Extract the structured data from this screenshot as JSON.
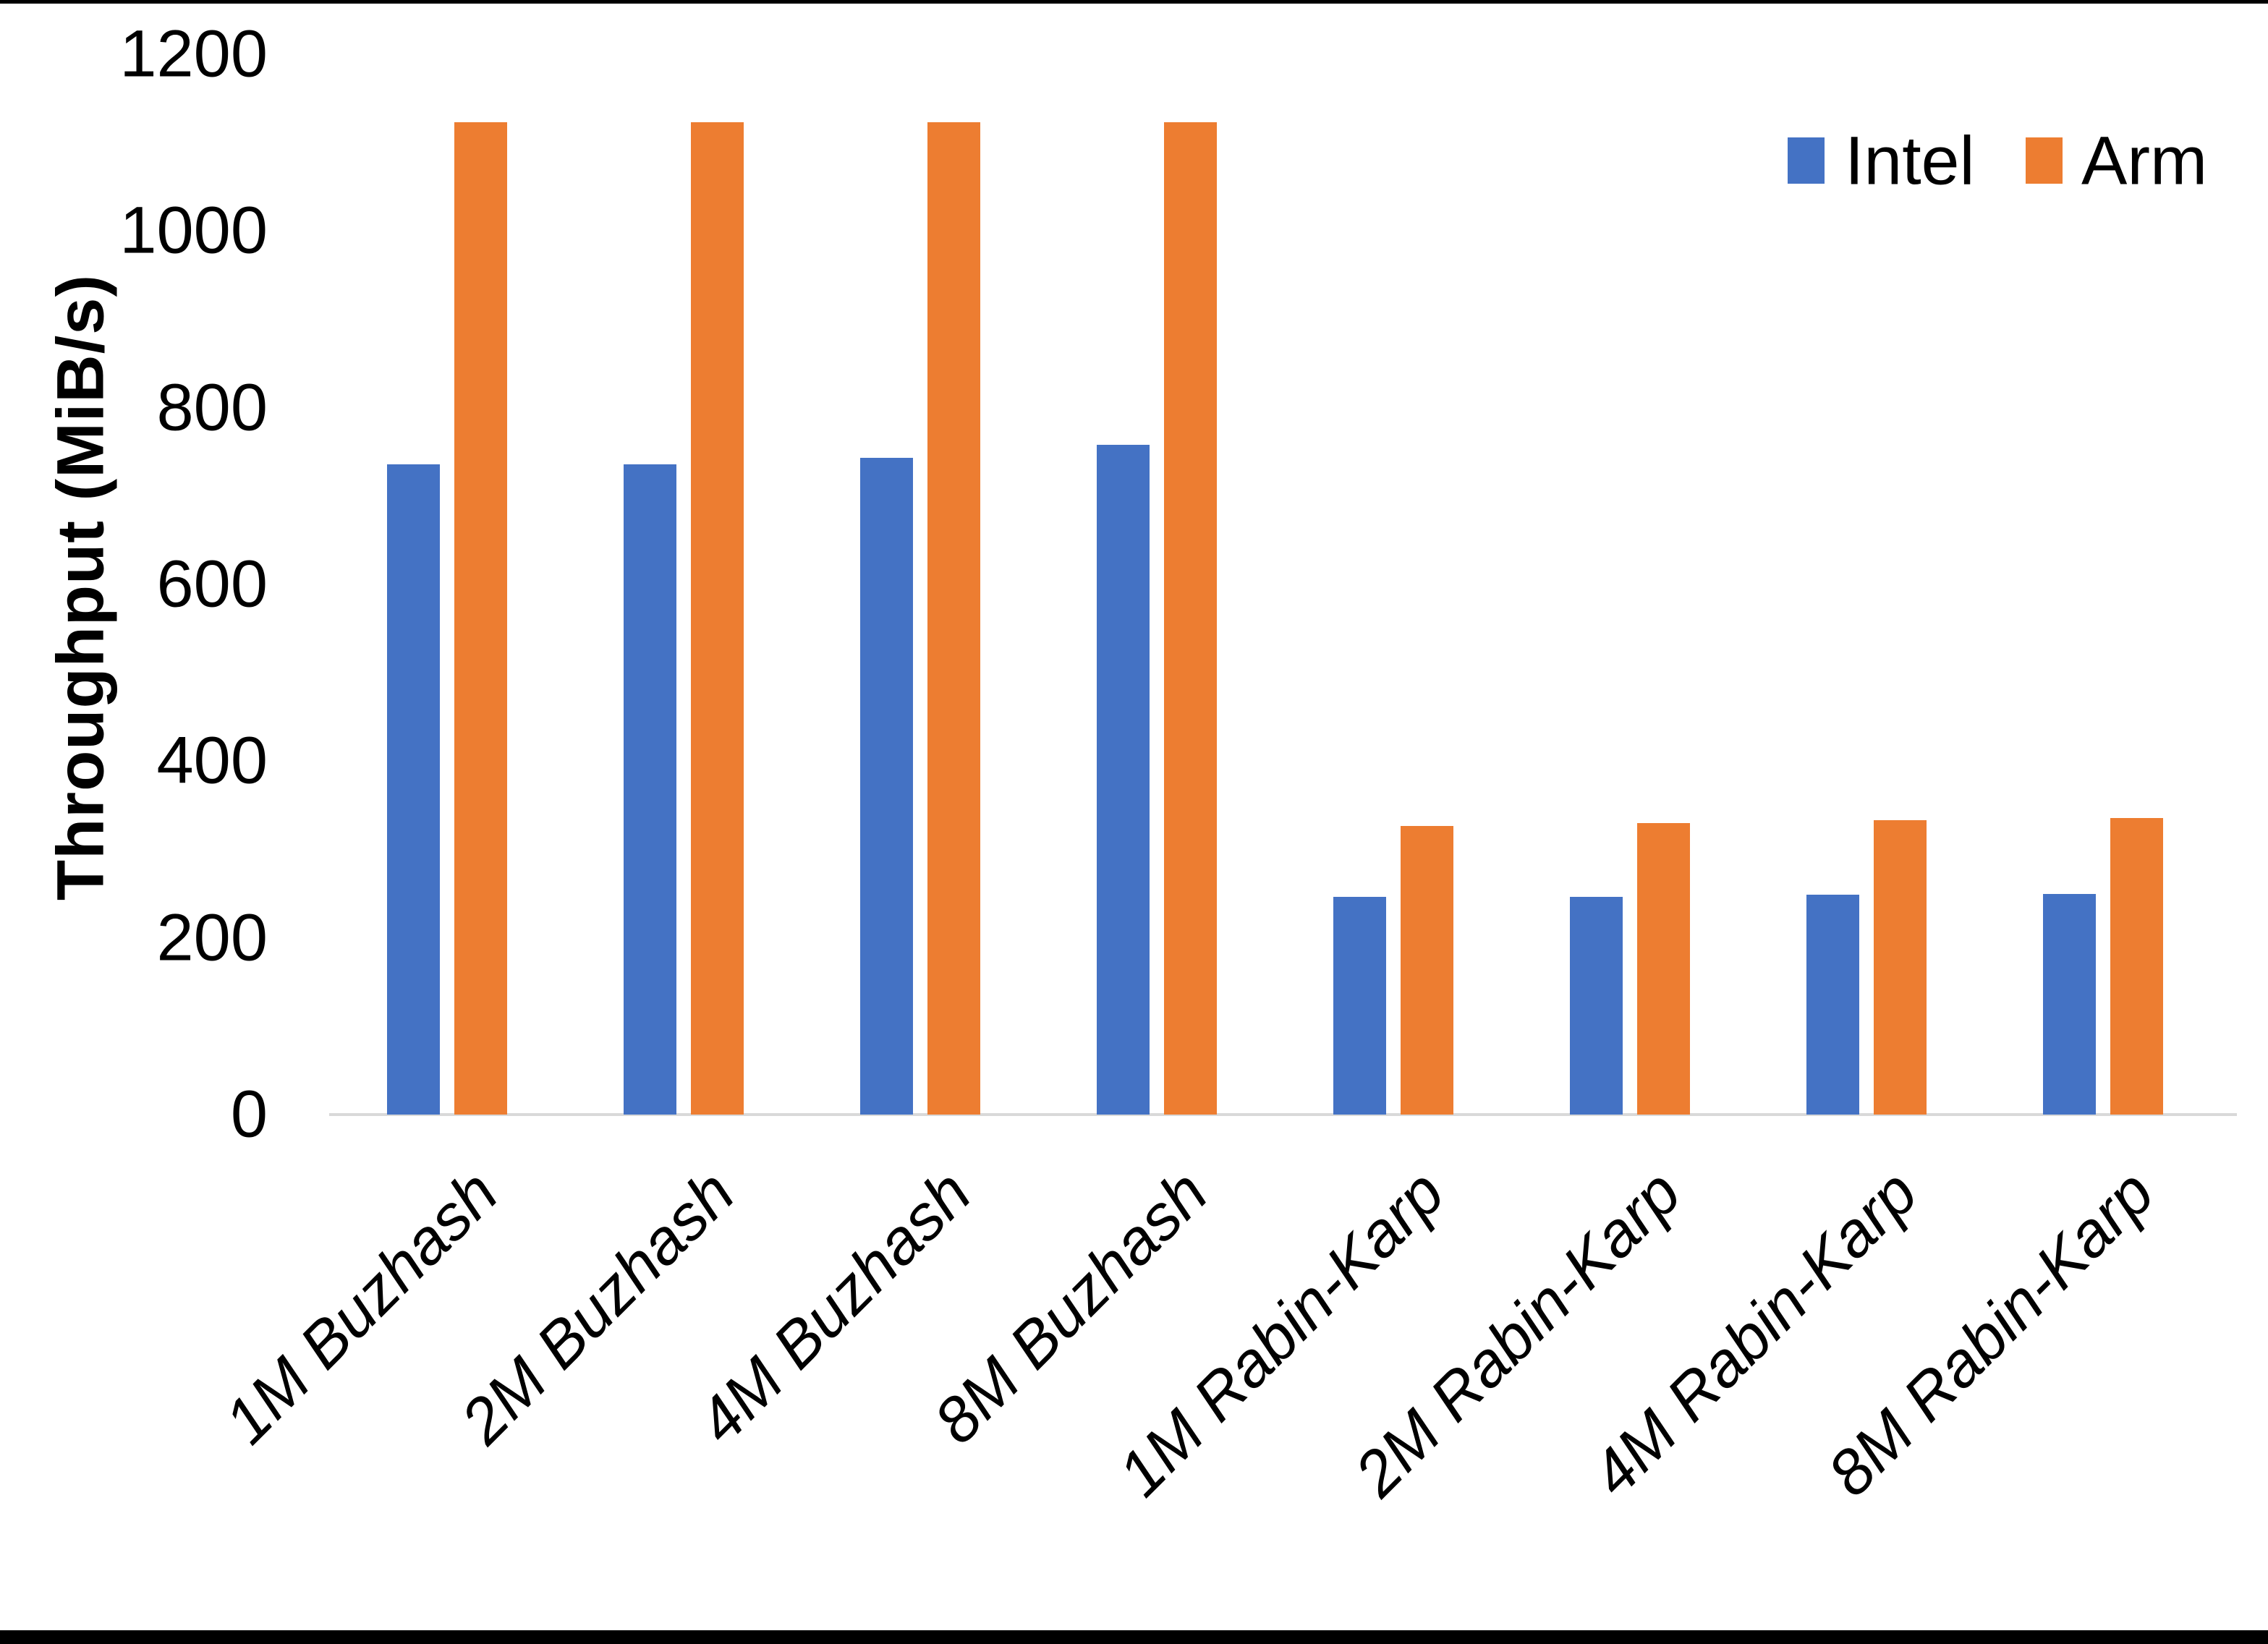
{
  "chart_data": {
    "type": "bar",
    "title": "",
    "xlabel": "",
    "ylabel": "Throughput (MiB/s)",
    "ylim": [
      0,
      1200
    ],
    "yticks": [
      0,
      200,
      400,
      600,
      800,
      1000,
      1200
    ],
    "grid": false,
    "legend_position": "top-right",
    "categories": [
      "1M Buzhash",
      "2M Buzhash",
      "4M Buzhash",
      "8M Buzhash",
      "1M Rabin-Karp",
      "2M Rabin-Karp",
      "4M Rabin-Karp",
      "8M Rabin-Karp"
    ],
    "series": [
      {
        "name": "Intel",
        "color": "#4472C4",
        "values": [
          736,
          736,
          743,
          758,
          246,
          246,
          249,
          250
        ]
      },
      {
        "name": "Arm",
        "color": "#ED7D31",
        "values": [
          1123,
          1123,
          1123,
          1123,
          327,
          330,
          333,
          336
        ]
      }
    ],
    "axis_line_color": "#D9D9D9",
    "text_color": "#000000",
    "page_edge_color": "#000000"
  }
}
